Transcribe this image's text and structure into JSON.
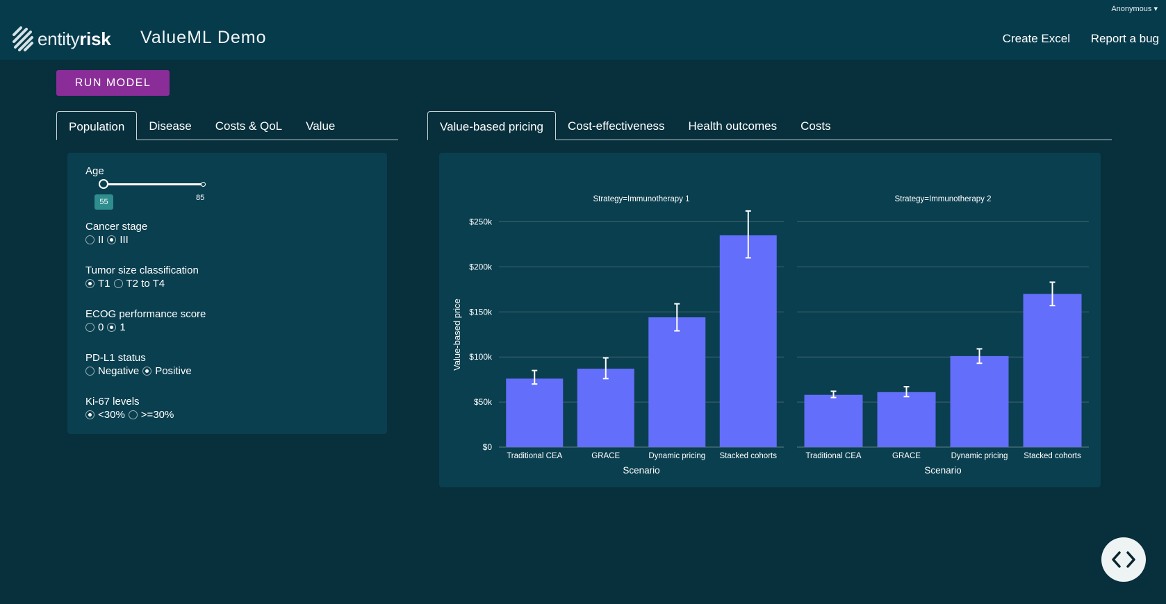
{
  "header": {
    "user": "Anonymous",
    "logo_part1": "entity",
    "logo_part2": "risk",
    "app_title": "ValueML Demo",
    "nav": [
      "Create Excel",
      "Report a bug"
    ]
  },
  "run_button": "RUN MODEL",
  "left_tabs": [
    "Population",
    "Disease",
    "Costs & QoL",
    "Value"
  ],
  "right_tabs": [
    "Value-based pricing",
    "Cost-effectiveness",
    "Health outcomes",
    "Costs"
  ],
  "population": {
    "age": {
      "label": "Age",
      "min": "55",
      "max": "85"
    },
    "cancer_stage": {
      "label": "Cancer stage",
      "options": [
        "II",
        "III"
      ],
      "selected": "III"
    },
    "tumor_size": {
      "label": "Tumor size classification",
      "options": [
        "T1",
        "T2 to T4"
      ],
      "selected": "T1"
    },
    "ecog": {
      "label": "ECOG performance score",
      "options": [
        "0",
        "1"
      ],
      "selected": "1"
    },
    "pdl1": {
      "label": "PD-L1 status",
      "options": [
        "Negative",
        "Positive"
      ],
      "selected": "Positive"
    },
    "ki67": {
      "label": "Ki-67 levels",
      "options": [
        "<30%",
        ">=30%"
      ],
      "selected": "<30%"
    }
  },
  "chart_data": {
    "type": "bar",
    "ylabel": "Value-based price",
    "ylim": [
      0,
      265000
    ],
    "yticks": [
      0,
      50000,
      100000,
      150000,
      200000,
      250000
    ],
    "ytick_labels": [
      "$0",
      "$50k",
      "$100k",
      "$150k",
      "$200k",
      "$250k"
    ],
    "bar_color": "#636efa",
    "panels": [
      {
        "title": "Strategy=Immunotherapy 1",
        "xlabel": "Scenario",
        "categories": [
          "Traditional CEA",
          "GRACE",
          "Dynamic pricing",
          "Stacked cohorts"
        ],
        "values": [
          76000,
          87000,
          144000,
          235000
        ],
        "error_low": [
          70000,
          76000,
          129000,
          210000
        ],
        "error_high": [
          85000,
          99000,
          159000,
          262000
        ]
      },
      {
        "title": "Strategy=Immunotherapy 2",
        "xlabel": "Scenario",
        "categories": [
          "Traditional CEA",
          "GRACE",
          "Dynamic pricing",
          "Stacked cohorts"
        ],
        "values": [
          58000,
          61000,
          101000,
          170000
        ],
        "error_low": [
          55000,
          56000,
          93000,
          157000
        ],
        "error_high": [
          62000,
          67000,
          109000,
          183000
        ]
      }
    ]
  }
}
